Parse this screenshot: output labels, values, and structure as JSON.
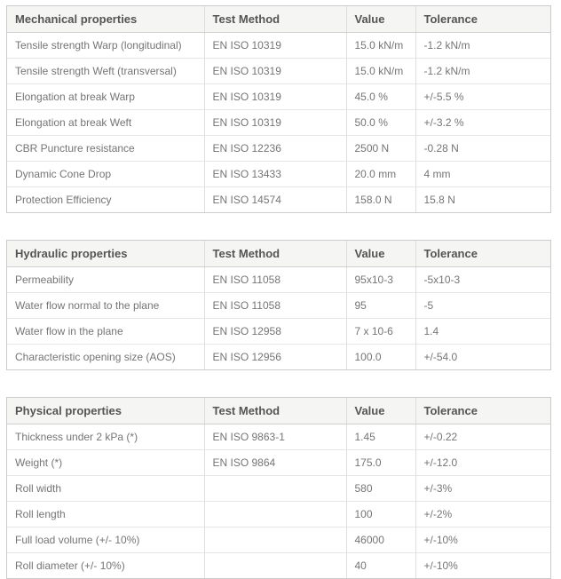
{
  "colors": {
    "page_background": "#ffffff",
    "header_background": "#f5f5f3",
    "header_text": "#555555",
    "body_text": "#757575",
    "outer_border": "#cbcbcb",
    "row_border": "#e6e6e6",
    "column_border": "#dddddd"
  },
  "column_headers": [
    "Test Method",
    "Value",
    "Tolerance"
  ],
  "tables": [
    {
      "title": "Mechanical properties",
      "rows": [
        [
          "Tensile strength Warp (longitudinal)",
          "EN ISO 10319",
          "15.0 kN/m",
          "-1.2 kN/m"
        ],
        [
          "Tensile strength Weft (transversal)",
          "EN ISO 10319",
          "15.0 kN/m",
          "-1.2 kN/m"
        ],
        [
          "Elongation at break Warp",
          "EN ISO 10319",
          "45.0 %",
          "+/-5.5 %"
        ],
        [
          "Elongation at break Weft",
          "EN ISO 10319",
          "50.0 %",
          "+/-3.2 %"
        ],
        [
          "CBR Puncture resistance",
          "EN ISO 12236",
          "2500 N",
          "-0.28 N"
        ],
        [
          "Dynamic Cone Drop",
          "EN ISO 13433",
          "20.0 mm",
          "4 mm"
        ],
        [
          "Protection Efficiency",
          "EN ISO 14574",
          "158.0 N",
          "15.8 N"
        ]
      ]
    },
    {
      "title": "Hydraulic properties",
      "rows": [
        [
          "Permeability",
          "EN ISO 11058",
          "95x10-3",
          "-5x10-3"
        ],
        [
          "Water flow normal to the plane",
          "EN ISO 11058",
          "95",
          "-5"
        ],
        [
          "Water flow in the plane",
          "EN ISO 12958",
          "7 x 10-6",
          "1.4"
        ],
        [
          "Characteristic opening size (AOS)",
          "EN ISO 12956",
          "100.0",
          "+/-54.0"
        ]
      ]
    },
    {
      "title": "Physical properties",
      "rows": [
        [
          "Thickness under 2 kPa (*)",
          "EN ISO 9863-1",
          "1.45",
          "+/-0.22"
        ],
        [
          "Weight (*)",
          "EN ISO 9864",
          "175.0",
          "+/-12.0"
        ],
        [
          "Roll width",
          "",
          "580",
          "+/-3%"
        ],
        [
          "Roll length",
          "",
          "100",
          "+/-2%"
        ],
        [
          "Full load volume (+/- 10%)",
          "",
          "46000",
          "+/-10%"
        ],
        [
          "Roll diameter (+/- 10%)",
          "",
          "40",
          "+/-10%"
        ]
      ]
    }
  ]
}
